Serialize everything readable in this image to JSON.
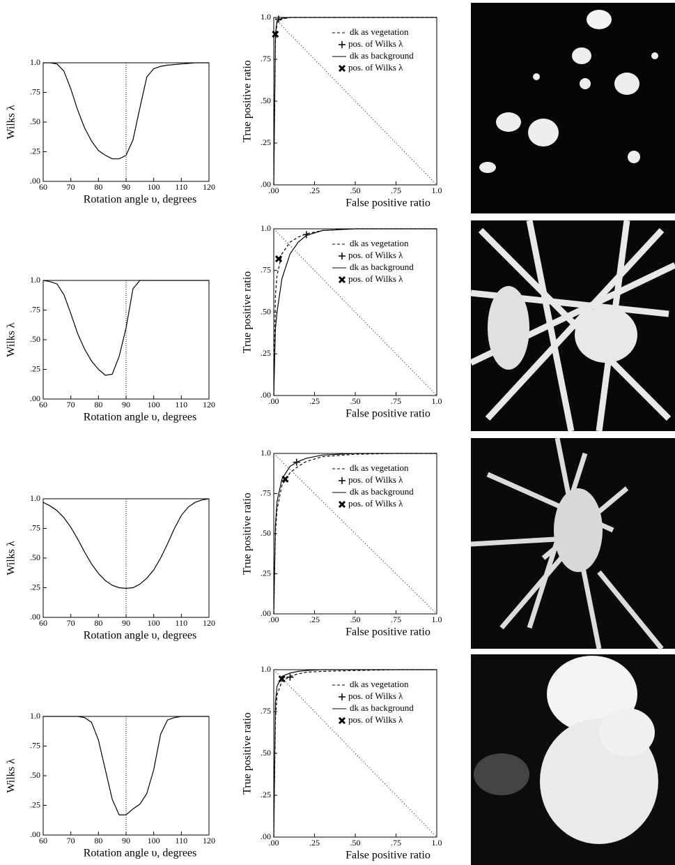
{
  "chart_data": [
    {
      "type": "line",
      "xlabel": "Rotation angle υ, degrees",
      "ylabel": "Wilks λ",
      "color": "#000000",
      "x": [
        60,
        62.5,
        65,
        67.5,
        70,
        72.5,
        75,
        77.5,
        80,
        82.5,
        85,
        87.5,
        90,
        92.5,
        95,
        97.5,
        100,
        102.5,
        105,
        107.5,
        110,
        112.5,
        115,
        117.5,
        120
      ],
      "values": [
        1.0,
        1.0,
        0.99,
        0.93,
        0.78,
        0.6,
        0.45,
        0.34,
        0.26,
        0.22,
        0.19,
        0.19,
        0.22,
        0.35,
        0.62,
        0.88,
        0.95,
        0.97,
        0.98,
        0.985,
        0.99,
        0.995,
        1.0,
        1.0,
        1.0
      ],
      "xlim": [
        60,
        120
      ],
      "ylim": [
        0,
        1
      ],
      "xticks": [
        60,
        70,
        80,
        90,
        100,
        110,
        120
      ],
      "yticks": [
        {
          "value": 0,
          "label": ".00"
        },
        {
          "value": 0.25,
          "label": ".25"
        },
        {
          "value": 0.5,
          "label": ".50"
        },
        {
          "value": 0.75,
          "label": ".75"
        },
        {
          "value": 1,
          "label": "1.0"
        }
      ],
      "vline": 90
    },
    {
      "type": "line",
      "xlabel": "False positive ratio",
      "ylabel": "True positive ratio",
      "legend": "upper right",
      "diagonal": true,
      "x": [
        0,
        0.01,
        0.02,
        0.05,
        0.1,
        0.15,
        0.2,
        0.3,
        0.5,
        0.75,
        1.0
      ],
      "series": [
        {
          "name": "dk as vegetation",
          "color": "#000000",
          "dash": "dashed",
          "values": [
            0,
            0.85,
            0.97,
            0.99,
            1,
            1,
            1,
            1,
            1,
            1,
            1
          ]
        },
        {
          "name": "dk as background",
          "color": "#000000",
          "dash": "solid",
          "values": [
            0,
            0.9,
            0.98,
            0.995,
            1,
            1,
            1,
            1,
            1,
            1,
            1
          ]
        }
      ],
      "markers": [
        {
          "name": "pos. of Wilks λ",
          "symbol": "+",
          "x": 0.03,
          "y": 0.99
        },
        {
          "name": "pos. of Wilks λ",
          "symbol": "X",
          "x": 0.01,
          "y": 0.9
        }
      ],
      "xlim": [
        0,
        1
      ],
      "ylim": [
        0,
        1
      ],
      "xticks": [
        {
          "value": 0,
          "label": ".00"
        },
        {
          "value": 0.25,
          "label": ".25"
        },
        {
          "value": 0.5,
          "label": ".50"
        },
        {
          "value": 0.75,
          "label": ".75"
        },
        {
          "value": 1,
          "label": "1.0"
        }
      ],
      "yticks": [
        {
          "value": 0,
          "label": ".00"
        },
        {
          "value": 0.25,
          "label": ".25"
        },
        {
          "value": 0.5,
          "label": ".50"
        },
        {
          "value": 0.75,
          "label": ".75"
        },
        {
          "value": 1,
          "label": "1.0"
        }
      ]
    },
    {
      "type": "line",
      "xlabel": "Rotation angle υ, degrees",
      "ylabel": "Wilks λ",
      "color": "#000000",
      "x": [
        60,
        62.5,
        65,
        67.5,
        70,
        72.5,
        75,
        77.5,
        80,
        82.5,
        85,
        87.5,
        90,
        92.5,
        95,
        97.5,
        100,
        102.5,
        105,
        107.5,
        110,
        112.5,
        115,
        117.5,
        120
      ],
      "values": [
        1.0,
        0.99,
        0.97,
        0.88,
        0.72,
        0.55,
        0.42,
        0.32,
        0.25,
        0.2,
        0.21,
        0.36,
        0.6,
        0.93,
        1.0,
        1.0,
        1.0,
        1.0,
        1.0,
        1.0,
        1.0,
        1.0,
        1.0,
        1.0,
        1.0
      ],
      "xlim": [
        60,
        120
      ],
      "ylim": [
        0,
        1
      ],
      "xticks": [
        60,
        70,
        80,
        90,
        100,
        110,
        120
      ],
      "yticks": [
        {
          "value": 0,
          "label": ".00"
        },
        {
          "value": 0.25,
          "label": ".25"
        },
        {
          "value": 0.5,
          "label": ".50"
        },
        {
          "value": 0.75,
          "label": ".75"
        },
        {
          "value": 1,
          "label": "1.0"
        }
      ],
      "vline": 90
    },
    {
      "type": "line",
      "xlabel": "False positive ratio",
      "ylabel": "True positive ratio",
      "legend": "upper right",
      "diagonal": true,
      "x": [
        0,
        0.01,
        0.02,
        0.05,
        0.1,
        0.15,
        0.2,
        0.3,
        0.5,
        0.75,
        1.0
      ],
      "series": [
        {
          "name": "dk as vegetation",
          "color": "#000000",
          "dash": "dashed",
          "values": [
            0,
            0.6,
            0.72,
            0.85,
            0.92,
            0.95,
            0.97,
            0.99,
            1,
            1,
            1
          ]
        },
        {
          "name": "dk as background",
          "color": "#000000",
          "dash": "solid",
          "values": [
            0,
            0.4,
            0.5,
            0.7,
            0.85,
            0.92,
            0.96,
            0.99,
            1,
            1,
            1
          ]
        }
      ],
      "markers": [
        {
          "name": "pos. of Wilks λ",
          "symbol": "+",
          "x": 0.2,
          "y": 0.965
        },
        {
          "name": "pos. of Wilks λ",
          "symbol": "X",
          "x": 0.03,
          "y": 0.82
        }
      ],
      "xlim": [
        0,
        1
      ],
      "ylim": [
        0,
        1
      ],
      "xticks": [
        {
          "value": 0,
          "label": ".00"
        },
        {
          "value": 0.25,
          "label": ".25"
        },
        {
          "value": 0.5,
          "label": ".50"
        },
        {
          "value": 0.75,
          "label": ".75"
        },
        {
          "value": 1,
          "label": "1.0"
        }
      ],
      "yticks": [
        {
          "value": 0,
          "label": ".00"
        },
        {
          "value": 0.25,
          "label": ".25"
        },
        {
          "value": 0.5,
          "label": ".50"
        },
        {
          "value": 0.75,
          "label": ".75"
        },
        {
          "value": 1,
          "label": "1.0"
        }
      ]
    },
    {
      "type": "line",
      "xlabel": "Rotation angle υ, degrees",
      "ylabel": "Wilks λ",
      "color": "#000000",
      "x": [
        60,
        62.5,
        65,
        67.5,
        70,
        72.5,
        75,
        77.5,
        80,
        82.5,
        85,
        87.5,
        90,
        92.5,
        95,
        97.5,
        100,
        102.5,
        105,
        107.5,
        110,
        112.5,
        115,
        117.5,
        120
      ],
      "values": [
        0.97,
        0.94,
        0.9,
        0.84,
        0.76,
        0.66,
        0.55,
        0.45,
        0.37,
        0.31,
        0.27,
        0.25,
        0.245,
        0.25,
        0.28,
        0.33,
        0.4,
        0.5,
        0.62,
        0.75,
        0.86,
        0.93,
        0.97,
        0.99,
        1.0
      ],
      "xlim": [
        60,
        120
      ],
      "ylim": [
        0,
        1
      ],
      "xticks": [
        60,
        70,
        80,
        90,
        100,
        110,
        120
      ],
      "yticks": [
        {
          "value": 0,
          "label": ".00"
        },
        {
          "value": 0.25,
          "label": ".25"
        },
        {
          "value": 0.5,
          "label": ".50"
        },
        {
          "value": 0.75,
          "label": ".75"
        },
        {
          "value": 1,
          "label": "1.0"
        }
      ],
      "vline": 90
    },
    {
      "type": "line",
      "xlabel": "False positive ratio",
      "ylabel": "True positive ratio",
      "legend": "upper right",
      "diagonal": true,
      "x": [
        0,
        0.01,
        0.02,
        0.05,
        0.1,
        0.15,
        0.2,
        0.3,
        0.5,
        0.75,
        1.0
      ],
      "series": [
        {
          "name": "dk as vegetation",
          "color": "#000000",
          "dash": "dashed",
          "values": [
            0,
            0.5,
            0.65,
            0.8,
            0.88,
            0.92,
            0.95,
            0.98,
            0.995,
            1,
            1
          ]
        },
        {
          "name": "dk as background",
          "color": "#000000",
          "dash": "solid",
          "values": [
            0,
            0.55,
            0.7,
            0.84,
            0.92,
            0.95,
            0.97,
            0.99,
            1,
            1,
            1
          ]
        }
      ],
      "markers": [
        {
          "name": "pos. of Wilks λ",
          "symbol": "+",
          "x": 0.14,
          "y": 0.945
        },
        {
          "name": "pos. of Wilks λ",
          "symbol": "X",
          "x": 0.07,
          "y": 0.84
        }
      ],
      "xlim": [
        0,
        1
      ],
      "ylim": [
        0,
        1
      ],
      "xticks": [
        {
          "value": 0,
          "label": ".00"
        },
        {
          "value": 0.25,
          "label": ".25"
        },
        {
          "value": 0.5,
          "label": ".50"
        },
        {
          "value": 0.75,
          "label": ".75"
        },
        {
          "value": 1,
          "label": "1.0"
        }
      ],
      "yticks": [
        {
          "value": 0,
          "label": ".00"
        },
        {
          "value": 0.25,
          "label": ".25"
        },
        {
          "value": 0.5,
          "label": ".50"
        },
        {
          "value": 0.75,
          "label": ".75"
        },
        {
          "value": 1,
          "label": "1.0"
        }
      ]
    },
    {
      "type": "line",
      "xlabel": "Rotation angle υ, degrees",
      "ylabel": "Wilks λ",
      "color": "#000000",
      "x": [
        60,
        62.5,
        65,
        67.5,
        70,
        72.5,
        75,
        77.5,
        80,
        82.5,
        85,
        87.5,
        90,
        92.5,
        95,
        97.5,
        100,
        102.5,
        105,
        107.5,
        110,
        112.5,
        115,
        117.5,
        120
      ],
      "values": [
        1.0,
        1.0,
        1.0,
        1.0,
        1.0,
        1.0,
        0.99,
        0.95,
        0.8,
        0.55,
        0.3,
        0.17,
        0.17,
        0.22,
        0.26,
        0.35,
        0.55,
        0.85,
        0.97,
        0.99,
        1.0,
        1.0,
        1.0,
        1.0,
        1.0
      ],
      "xlim": [
        60,
        120
      ],
      "ylim": [
        0,
        1
      ],
      "xticks": [
        60,
        70,
        80,
        90,
        100,
        110,
        120
      ],
      "yticks": [
        {
          "value": 0,
          "label": ".00"
        },
        {
          "value": 0.25,
          "label": ".25"
        },
        {
          "value": 0.5,
          "label": ".50"
        },
        {
          "value": 0.75,
          "label": ".75"
        },
        {
          "value": 1,
          "label": "1.0"
        }
      ],
      "vline": 90
    },
    {
      "type": "line",
      "xlabel": "False positive ratio",
      "ylabel": "True positive ratio",
      "legend": "upper right",
      "diagonal": true,
      "x": [
        0,
        0.01,
        0.02,
        0.05,
        0.1,
        0.15,
        0.2,
        0.3,
        0.5,
        0.75,
        1.0
      ],
      "series": [
        {
          "name": "dk as vegetation",
          "color": "#000000",
          "dash": "dashed",
          "values": [
            0,
            0.7,
            0.85,
            0.93,
            0.96,
            0.975,
            0.985,
            0.99,
            0.995,
            1,
            1
          ]
        },
        {
          "name": "dk as background",
          "color": "#000000",
          "dash": "solid",
          "values": [
            0,
            0.8,
            0.9,
            0.96,
            0.98,
            0.99,
            0.995,
            1,
            1,
            1,
            1
          ]
        }
      ],
      "markers": [
        {
          "name": "pos. of Wilks λ",
          "symbol": "+",
          "x": 0.1,
          "y": 0.955
        },
        {
          "name": "pos. of Wilks λ",
          "symbol": "X",
          "x": 0.05,
          "y": 0.945
        }
      ],
      "xlim": [
        0,
        1
      ],
      "ylim": [
        0,
        1
      ],
      "xticks": [
        {
          "value": 0,
          "label": ".00"
        },
        {
          "value": 0.25,
          "label": ".25"
        },
        {
          "value": 0.5,
          "label": ".50"
        },
        {
          "value": 0.75,
          "label": ".75"
        },
        {
          "value": 1,
          "label": "1.0"
        }
      ],
      "yticks": [
        {
          "value": 0,
          "label": ".00"
        },
        {
          "value": 0.25,
          "label": ".25"
        },
        {
          "value": 0.5,
          "label": ".50"
        },
        {
          "value": 0.75,
          "label": ".75"
        },
        {
          "value": 1,
          "label": "1.0"
        }
      ]
    }
  ]
}
